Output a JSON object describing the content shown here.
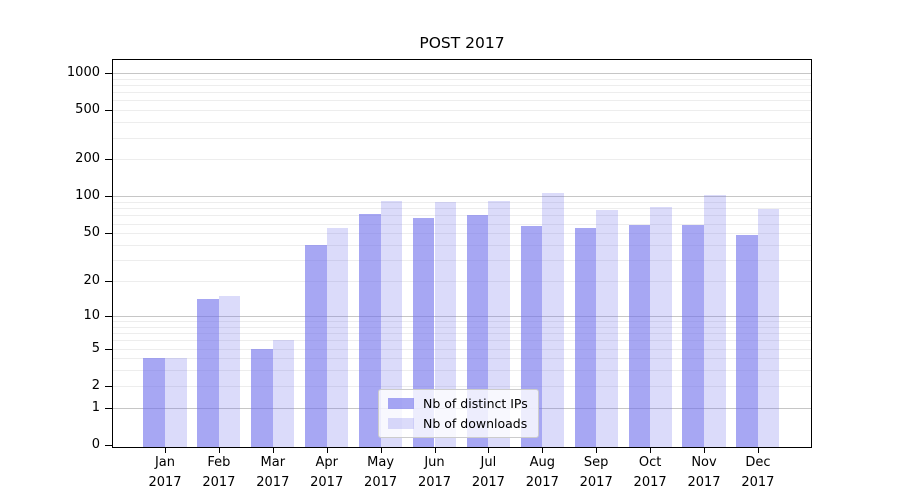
{
  "title": "POST 2017",
  "legend": {
    "items": [
      {
        "label": "Nb of distinct IPs",
        "color": "rgba(113,113,235,0.62)"
      },
      {
        "label": "Nb of downloads",
        "color": "rgba(113,113,235,0.25)"
      }
    ]
  },
  "chart_data": {
    "type": "bar",
    "title": "POST 2017",
    "categories": [
      "Jan 2017",
      "Feb 2017",
      "Mar 2017",
      "Apr 2017",
      "May 2017",
      "Jun 2017",
      "Jul 2017",
      "Aug 2017",
      "Sep 2017",
      "Oct 2017",
      "Nov 2017",
      "Dec 2017"
    ],
    "month_labels": [
      "Jan",
      "Feb",
      "Mar",
      "Apr",
      "May",
      "Jun",
      "Jul",
      "Aug",
      "Sep",
      "Oct",
      "Nov",
      "Dec"
    ],
    "year_label": "2017",
    "series": [
      {
        "name": "Nb of distinct IPs",
        "color": "rgba(113,113,235,0.62)",
        "values": [
          4,
          14,
          5,
          40,
          72,
          67,
          70,
          57,
          55,
          59,
          59,
          48
        ]
      },
      {
        "name": "Nb of downloads",
        "color": "rgba(113,113,235,0.25)",
        "values": [
          4,
          15,
          6,
          55,
          92,
          90,
          92,
          107,
          78,
          82,
          103,
          79
        ]
      }
    ],
    "xlabel": "",
    "ylabel": "",
    "yscale": "log10(1+y)",
    "y_tick_values": [
      0,
      1,
      2,
      5,
      10,
      20,
      50,
      100,
      200,
      500,
      1000
    ],
    "y_tick_labels": [
      "0",
      "1",
      "2",
      "5",
      "10",
      "20",
      "50",
      "100",
      "200",
      "500",
      "1000"
    ],
    "y_major_gridlines": [
      1,
      10,
      100,
      1000
    ],
    "ylim": [
      0,
      1290
    ],
    "grid": true,
    "legend_position": "lower center"
  }
}
